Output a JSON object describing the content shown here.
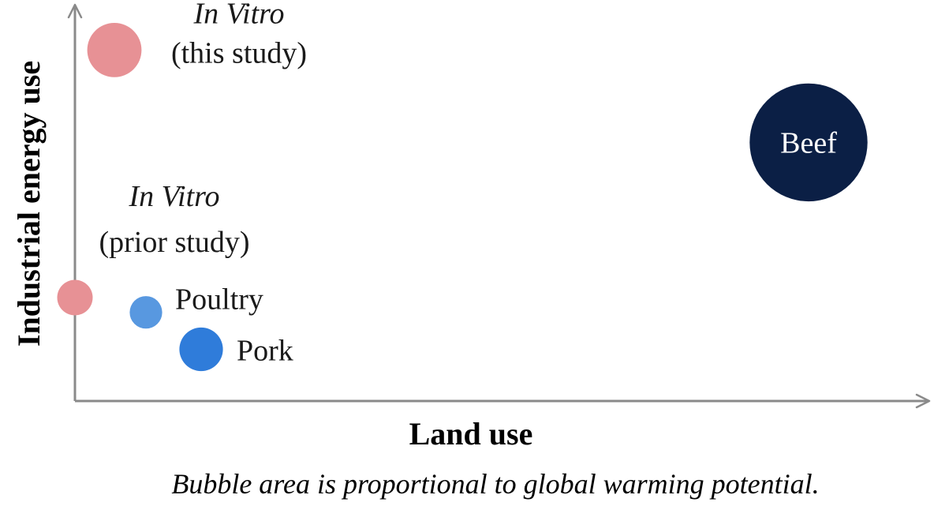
{
  "chart_data": {
    "type": "scatter",
    "xlabel": "Land use",
    "ylabel": "Industrial energy use",
    "xlim": [
      0,
      100
    ],
    "ylim": [
      0,
      100
    ],
    "grid": false,
    "x_ticks": false,
    "y_ticks": false,
    "note": "Bubble area is proportional to global warming potential.",
    "points": [
      {
        "label_line1": "In Vitro",
        "label_line2": "(this study)",
        "x": 5,
        "y": 95,
        "gwp": 7,
        "color": "#e79195"
      },
      {
        "label_line1": "In Vitro",
        "label_line2": "(prior study)",
        "x": 0,
        "y": 28,
        "gwp": 3,
        "color": "#e79195"
      },
      {
        "label_line1": "Poultry",
        "label_line2": "",
        "x": 9,
        "y": 24,
        "gwp": 2.5,
        "color": "#5898e0"
      },
      {
        "label_line1": "Pork",
        "label_line2": "",
        "x": 16,
        "y": 14,
        "gwp": 4.5,
        "color": "#2f7cda"
      },
      {
        "label_line1": "Beef",
        "label_line2": "",
        "x": 93,
        "y": 70,
        "gwp": 33,
        "color": "#0b1f45"
      }
    ]
  },
  "colors": {
    "axis": "#8a8a8a",
    "inside_label_text": "#ffffff"
  }
}
